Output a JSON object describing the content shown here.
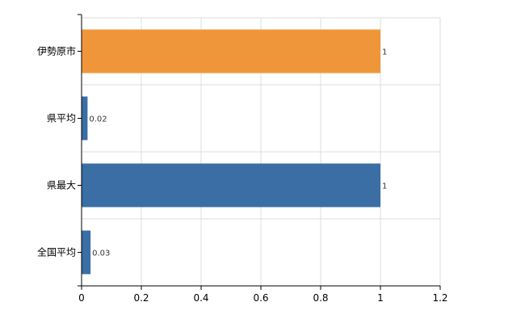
{
  "chart_data": {
    "type": "bar",
    "orientation": "horizontal",
    "categories": [
      "伊勢原市",
      "県平均",
      "県最大",
      "全国平均"
    ],
    "values": [
      1,
      0.02,
      1,
      0.03
    ],
    "value_labels": [
      "1",
      "0.02",
      "1",
      "0.03"
    ],
    "bar_colors": [
      "#f0963a",
      "#3a6ea5",
      "#3a6ea5",
      "#3a6ea5"
    ],
    "x_ticks": [
      "0",
      "0.2",
      "0.4",
      "0.6",
      "0.8",
      "1",
      "1.2"
    ],
    "xlim": [
      0,
      1.2
    ],
    "grid": true,
    "legend": false,
    "title": "",
    "xlabel": "",
    "ylabel": ""
  }
}
